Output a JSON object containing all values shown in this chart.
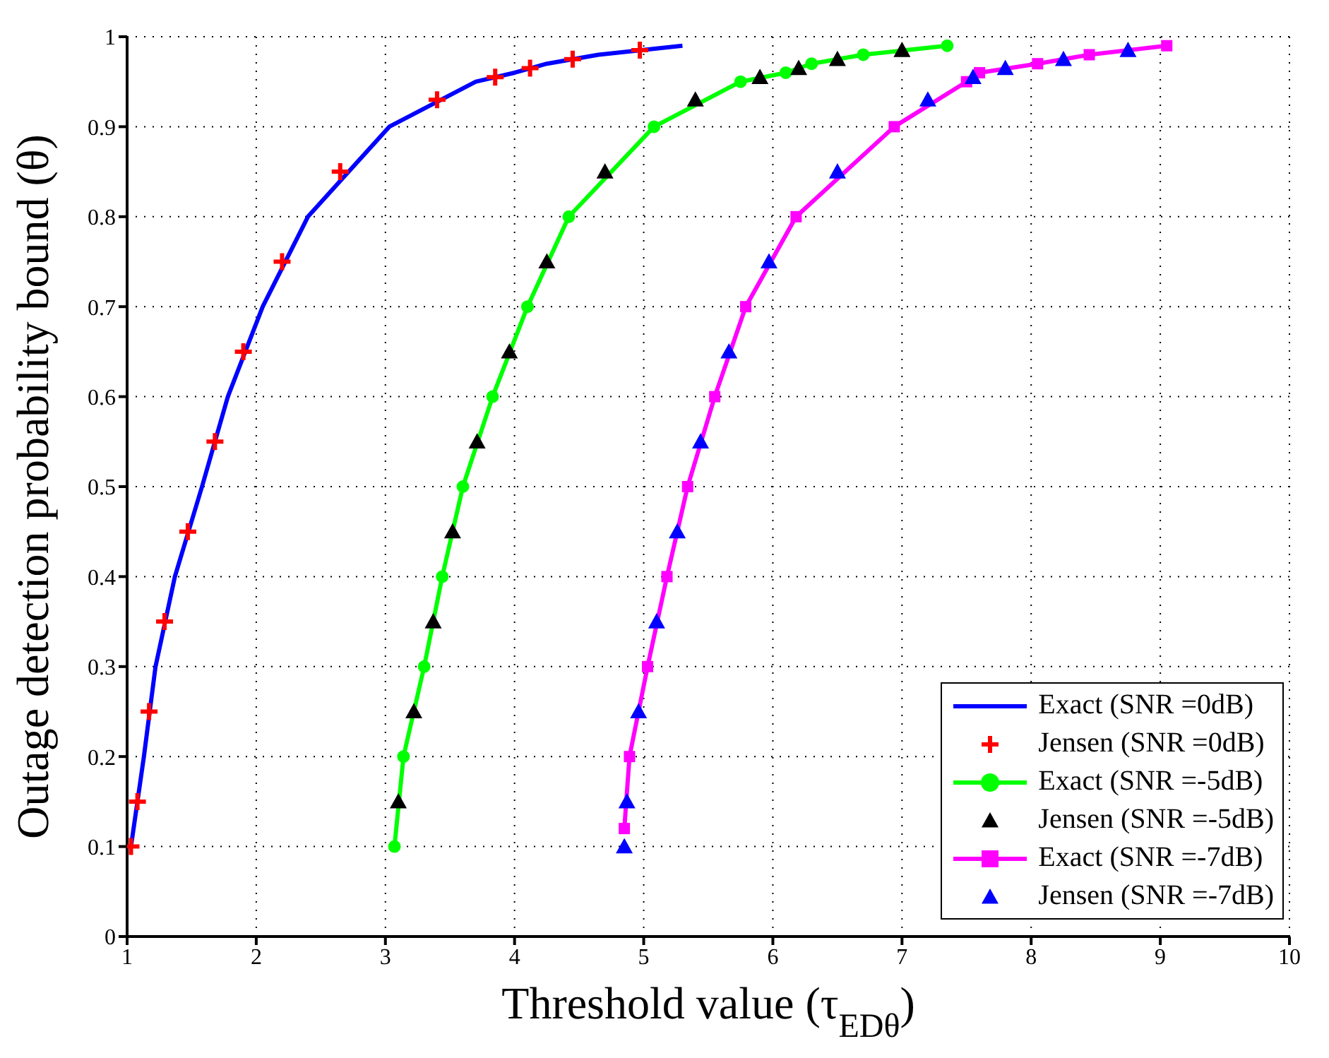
{
  "chart_data": {
    "type": "line",
    "xlabel": "Threshold value (τ$_{EDθ}$)",
    "ylabel": "Outage detection probability bound (θ)",
    "xlim": [
      1,
      10
    ],
    "xticks": [
      1,
      2,
      3,
      4,
      5,
      6,
      7,
      8,
      9,
      10
    ],
    "ylim": [
      0,
      1
    ],
    "yticks": [
      0,
      0.1,
      0.2,
      0.3,
      0.4,
      0.5,
      0.6,
      0.7,
      0.8,
      0.9,
      1
    ],
    "grid": true,
    "legend": "bottom right",
    "series": [
      {
        "name": "Exact (SNR =0dB)",
        "color": "#0000ff",
        "marker": "none",
        "x": [
          1.03,
          1.13,
          1.22,
          1.37,
          1.58,
          1.78,
          2.05,
          2.4,
          3.03,
          3.7,
          4.0,
          4.25,
          4.65,
          5.3
        ],
        "values": [
          0.1,
          0.2,
          0.3,
          0.4,
          0.5,
          0.6,
          0.7,
          0.8,
          0.9,
          0.95,
          0.96,
          0.97,
          0.98,
          0.99
        ]
      },
      {
        "name": "Jensen (SNR =0dB)",
        "type": "scatter",
        "color": "#ff0000",
        "marker": "cross",
        "x": [
          1.03,
          1.08,
          1.17,
          1.29,
          1.47,
          1.68,
          1.9,
          2.2,
          2.65,
          3.4,
          3.85,
          4.12,
          4.45,
          4.97
        ],
        "values": [
          0.1,
          0.15,
          0.25,
          0.35,
          0.45,
          0.55,
          0.65,
          0.75,
          0.85,
          0.93,
          0.955,
          0.965,
          0.975,
          0.985
        ]
      },
      {
        "name": "Exact (SNR =-5dB)",
        "color": "#00ff00",
        "marker": "circle",
        "x": [
          3.07,
          3.14,
          3.3,
          3.44,
          3.6,
          3.83,
          4.1,
          4.42,
          5.08,
          5.75,
          6.1,
          6.3,
          6.7,
          7.35
        ],
        "values": [
          0.1,
          0.2,
          0.3,
          0.4,
          0.5,
          0.6,
          0.7,
          0.8,
          0.9,
          0.95,
          0.96,
          0.97,
          0.98,
          0.99
        ]
      },
      {
        "name": "Jensen (SNR =-5dB)",
        "type": "scatter",
        "color": "#000000",
        "marker": "triangle",
        "x": [
          3.1,
          3.22,
          3.37,
          3.52,
          3.71,
          3.96,
          4.25,
          4.7,
          5.4,
          5.9,
          6.2,
          6.5,
          7.0
        ],
        "values": [
          0.15,
          0.25,
          0.35,
          0.45,
          0.55,
          0.65,
          0.75,
          0.85,
          0.93,
          0.955,
          0.965,
          0.975,
          0.985
        ]
      },
      {
        "name": "Exact (SNR =-7dB)",
        "color": "#ff00ff",
        "marker": "square",
        "x": [
          4.85,
          4.89,
          5.03,
          5.18,
          5.34,
          5.55,
          5.79,
          6.18,
          6.94,
          7.5,
          7.6,
          8.05,
          8.45,
          9.05
        ],
        "values": [
          0.12,
          0.2,
          0.3,
          0.4,
          0.5,
          0.6,
          0.7,
          0.8,
          0.9,
          0.95,
          0.96,
          0.97,
          0.98,
          0.99
        ]
      },
      {
        "name": "Jensen (SNR =-7dB)",
        "type": "scatter",
        "color": "#0000ff",
        "marker": "triangle",
        "x": [
          4.85,
          4.87,
          4.96,
          5.1,
          5.26,
          5.44,
          5.66,
          5.97,
          6.5,
          7.2,
          7.55,
          7.8,
          8.25,
          8.75
        ],
        "values": [
          0.1,
          0.15,
          0.25,
          0.35,
          0.45,
          0.55,
          0.65,
          0.75,
          0.85,
          0.93,
          0.955,
          0.965,
          0.975,
          0.985
        ]
      }
    ]
  }
}
